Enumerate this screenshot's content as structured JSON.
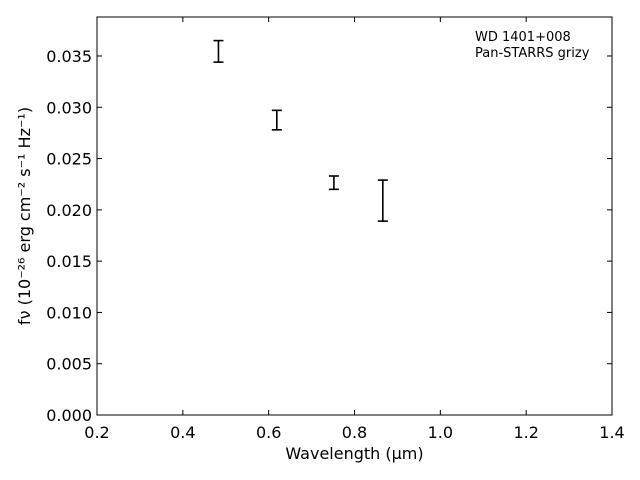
{
  "chart_data": {
    "type": "scatter",
    "style": "errorbar",
    "xlabel": "Wavelength (μm)",
    "ylabel": "fν (10⁻²⁶ erg cm⁻² s⁻¹ Hz⁻¹)",
    "xlim": [
      0.2,
      1.4
    ],
    "ylim": [
      0.0,
      0.0388
    ],
    "xticks": [
      "0.2",
      "0.4",
      "0.6",
      "0.8",
      "1.0",
      "1.2",
      "1.4"
    ],
    "yticks": [
      "0.000",
      "0.005",
      "0.010",
      "0.015",
      "0.020",
      "0.025",
      "0.030",
      "0.035"
    ],
    "annotations": [
      "WD 1401+008",
      "Pan-STARRS grizy"
    ],
    "grid": false,
    "points": [
      {
        "x": 0.483,
        "y_low": 0.0344,
        "y_high": 0.0365
      },
      {
        "x": 0.619,
        "y_low": 0.0278,
        "y_high": 0.0297
      },
      {
        "x": 0.752,
        "y_low": 0.022,
        "y_high": 0.0233
      },
      {
        "x": 0.866,
        "y_low": 0.0189,
        "y_high": 0.0229
      }
    ],
    "color": "#000000"
  }
}
